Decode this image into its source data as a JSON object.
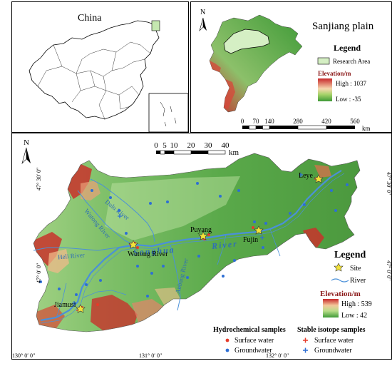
{
  "china": {
    "title": "China"
  },
  "plain": {
    "title": "Sanjiang plain",
    "north": "N",
    "legend_title": "Legend",
    "research_area": "Research Area",
    "elevation_title": "Elevation/m",
    "high": "High : 1037",
    "low": "Low : -35",
    "scale_ticks": [
      "0",
      "70",
      "140",
      "280",
      "420",
      "560"
    ],
    "scale_unit": "km"
  },
  "main": {
    "north": "N",
    "scale_ticks": [
      "0",
      "5",
      "10",
      "20",
      "30",
      "40"
    ],
    "scale_unit": "km",
    "rivers": {
      "songhua_a": "Songhua",
      "songhua_b": "River",
      "dulu": "Dulu River",
      "wutong": "Wutong River",
      "wutong_river_bottom": "Wutong River",
      "heli": "Heli River",
      "anbang": "Anbang River"
    },
    "sites": {
      "leye": "Leye",
      "puyang": "Puyang",
      "fujin": "Fujin",
      "jiamusi": "Jiamusi"
    },
    "legend": {
      "title": "Legend",
      "site": "Site",
      "river": "River",
      "elevation_title": "Elevation/m",
      "high": "High : 539",
      "low": "Low : 42",
      "hydro_title": "Hydrochemical  samples",
      "isotope_title": "Stable isotope samples",
      "surface": "Surface water",
      "ground": "Groundwater",
      "surface2": "Surface water",
      "ground2": "Groundwater"
    },
    "axes": {
      "lat_top": "47° 30′ 0″",
      "lat_bottom": "47° 0′ 0″",
      "lat_top_right": "47° 30′ 0″",
      "lat_bottom_right": "47° 0′ 0″",
      "lon_1": "130° 0′ 0″",
      "lon_2": "131° 0′ 0″",
      "lon_3": "132° 0′ 0″"
    },
    "colors": {
      "surface_water": "#e53b2a",
      "groundwater": "#2e6fd4",
      "river": "#4a90d9",
      "high_elev": "#c8282a",
      "low_elev": "#4c9a3a"
    }
  }
}
